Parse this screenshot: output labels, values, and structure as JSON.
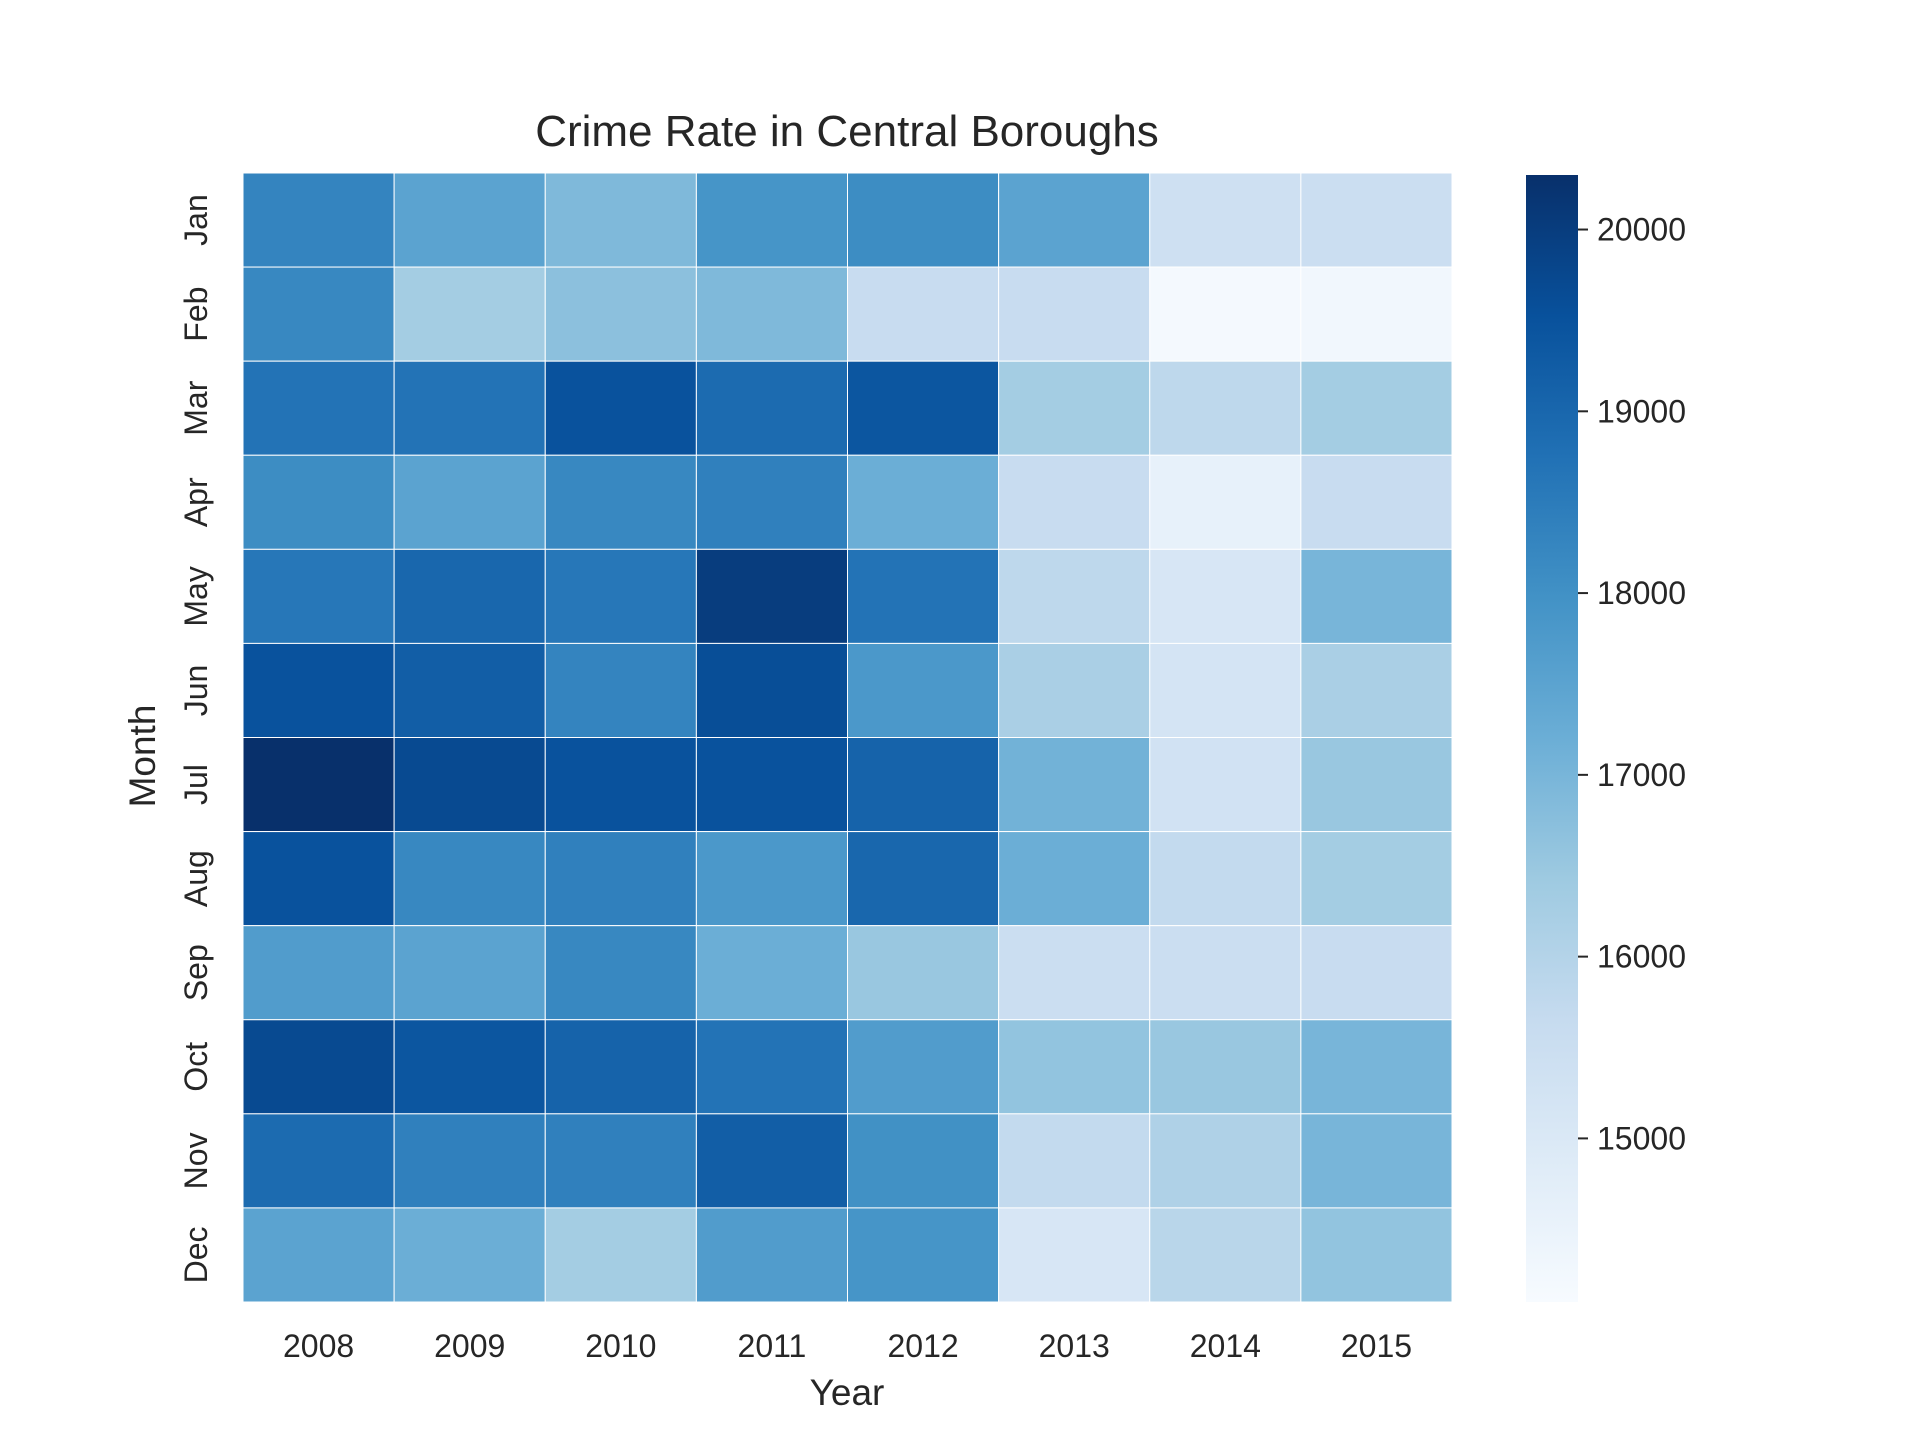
{
  "chart_data": {
    "type": "heatmap",
    "title": "Crime Rate in Central Boroughs",
    "xlabel": "Year",
    "ylabel": "Month",
    "x_categories": [
      "2008",
      "2009",
      "2010",
      "2011",
      "2012",
      "2013",
      "2014",
      "2015"
    ],
    "y_categories": [
      "Jan",
      "Feb",
      "Mar",
      "Apr",
      "May",
      "Jun",
      "Jul",
      "Aug",
      "Sep",
      "Oct",
      "Nov",
      "Dec"
    ],
    "values": [
      [
        18300,
        17500,
        16900,
        17900,
        18100,
        17500,
        15400,
        15500
      ],
      [
        18200,
        16300,
        16700,
        16900,
        15600,
        15600,
        14200,
        14300
      ],
      [
        18700,
        18700,
        19500,
        18900,
        19400,
        16300,
        15800,
        16300
      ],
      [
        18100,
        17500,
        18200,
        18400,
        17200,
        15600,
        14600,
        15600
      ],
      [
        18600,
        19000,
        18600,
        20000,
        18700,
        15800,
        15100,
        17000
      ],
      [
        19500,
        19200,
        18300,
        19600,
        17800,
        16200,
        15200,
        16200
      ],
      [
        20300,
        19700,
        19500,
        19500,
        19100,
        17100,
        15300,
        16500
      ],
      [
        19500,
        18200,
        18400,
        17800,
        19000,
        17200,
        15700,
        16300
      ],
      [
        17700,
        17500,
        18200,
        17200,
        16500,
        15500,
        15500,
        15600
      ],
      [
        19700,
        19400,
        19100,
        18700,
        17700,
        16600,
        16500,
        17000
      ],
      [
        18900,
        18400,
        18400,
        19200,
        18000,
        15700,
        16100,
        17000
      ],
      [
        17500,
        17200,
        16300,
        17700,
        17900,
        15100,
        15900,
        16600
      ]
    ],
    "colorbar": {
      "min": 14100,
      "max": 20300,
      "ticks": [
        15000,
        16000,
        17000,
        18000,
        19000,
        20000
      ],
      "colormap": "Blues"
    },
    "colors": {
      "text": "#262626",
      "cell_border": "#ffffff",
      "scale": [
        "#f7fbff",
        "#deebf7",
        "#c6dbef",
        "#9ecae1",
        "#6baed6",
        "#4292c6",
        "#2171b5",
        "#08519c",
        "#08306b"
      ]
    }
  }
}
